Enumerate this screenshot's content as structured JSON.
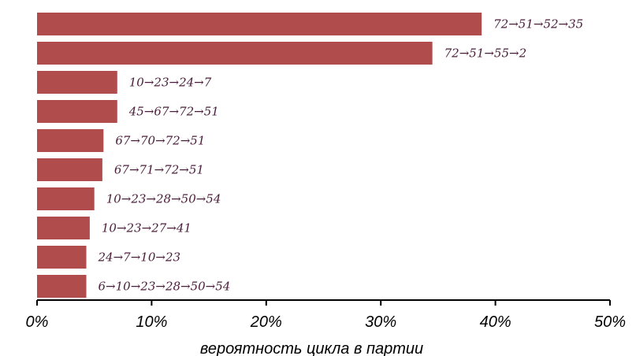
{
  "chart_data": {
    "type": "bar",
    "orientation": "horizontal",
    "categories": [
      "72→51→52→35",
      "72→51→55→2",
      "10→23→24→7",
      "45→67→72→51",
      "67→70→72→51",
      "67→71→72→51",
      "10→23→28→50→54",
      "10→23→27→41",
      "24→7→10→23",
      "6→10→23→28→50→54"
    ],
    "values": [
      38.8,
      34.5,
      7.0,
      7.0,
      5.8,
      5.7,
      5.0,
      4.6,
      4.3,
      4.3
    ],
    "xlabel": "вероятность цикла в партии",
    "xlim": [
      0,
      50
    ],
    "x_ticks": [
      0,
      10,
      20,
      30,
      40,
      50
    ],
    "x_tick_labels": [
      "0%",
      "10%",
      "20%",
      "30%",
      "40%",
      "50%"
    ],
    "grid": false,
    "colors": {
      "bar": "#b04c4c",
      "label": "#4a1d3a"
    }
  }
}
